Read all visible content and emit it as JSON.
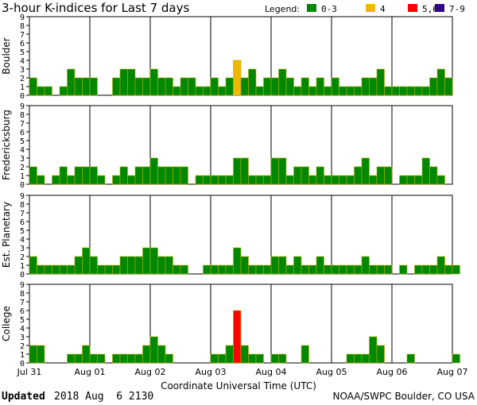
{
  "title": "3-hour K-indices for Last 7 days",
  "legend": {
    "label": "Legend:",
    "items": [
      {
        "label": "0-3",
        "color": "#008800"
      },
      {
        "label": "4",
        "color": "#f0b800"
      },
      {
        "label": "5,6",
        "color": "#ff0000"
      },
      {
        "label": "7-9",
        "color": "#330088"
      }
    ]
  },
  "xaxis_title": "Coordinate Universal Time (UTC)",
  "date_labels": [
    "Jul 31",
    "Aug 01",
    "Aug 02",
    "Aug 03",
    "Aug 04",
    "Aug 05",
    "Aug 06",
    "Aug 07"
  ],
  "footer": {
    "updated_label": "Updated",
    "updated_value": "2018 Aug  6 2130",
    "source": "NOAA/SWPC Boulder, CO USA"
  },
  "chart_data": {
    "type": "bar",
    "ylim": [
      0,
      9
    ],
    "yticks": [
      0,
      1,
      2,
      3,
      4,
      5,
      6,
      7,
      8,
      9
    ],
    "slots_per_day": 8,
    "days": 7,
    "thresholds": [
      {
        "max": 3,
        "color": "#008800"
      },
      {
        "max": 4,
        "color": "#f0b800"
      },
      {
        "max": 6,
        "color": "#ff0000"
      },
      {
        "max": 9,
        "color": "#330088"
      }
    ],
    "panels": [
      {
        "name": "Boulder",
        "values": [
          2,
          1,
          1,
          0,
          1,
          3,
          2,
          2,
          2,
          0,
          0,
          2,
          3,
          3,
          2,
          2,
          3,
          2,
          2,
          1,
          2,
          2,
          1,
          1,
          2,
          1,
          2,
          4,
          2,
          3,
          1,
          2,
          2,
          3,
          2,
          1,
          2,
          1,
          2,
          1,
          2,
          1,
          1,
          1,
          2,
          2,
          3,
          1,
          1,
          1,
          1,
          1,
          1,
          2,
          3,
          2,
          0
        ]
      },
      {
        "name": "Fredericksburg",
        "values": [
          2,
          1,
          0,
          1,
          2,
          1,
          2,
          2,
          2,
          1,
          0,
          1,
          2,
          1,
          2,
          2,
          3,
          2,
          2,
          2,
          2,
          0,
          1,
          1,
          1,
          1,
          1,
          3,
          3,
          1,
          1,
          1,
          3,
          3,
          1,
          2,
          2,
          1,
          2,
          1,
          1,
          1,
          1,
          2,
          3,
          1,
          2,
          2,
          0,
          1,
          1,
          1,
          3,
          2,
          1,
          0
        ]
      },
      {
        "name": "Est. Planetary",
        "values": [
          2,
          1,
          1,
          1,
          1,
          1,
          2,
          3,
          2,
          1,
          1,
          1,
          2,
          2,
          2,
          3,
          3,
          2,
          2,
          1,
          1,
          0,
          0,
          1,
          1,
          1,
          1,
          3,
          2,
          1,
          1,
          1,
          2,
          2,
          1,
          2,
          1,
          1,
          2,
          1,
          1,
          1,
          1,
          1,
          2,
          1,
          1,
          1,
          0,
          1,
          0,
          1,
          1,
          1,
          2,
          1,
          1
        ]
      },
      {
        "name": "College",
        "values": [
          2,
          2,
          0,
          0,
          0,
          1,
          1,
          2,
          1,
          1,
          0,
          1,
          1,
          1,
          1,
          2,
          3,
          2,
          1,
          0,
          0,
          0,
          0,
          0,
          1,
          1,
          2,
          6,
          2,
          1,
          1,
          0,
          1,
          1,
          0,
          0,
          2,
          0,
          0,
          0,
          0,
          0,
          1,
          1,
          1,
          3,
          2,
          0,
          0,
          0,
          1,
          0,
          0,
          0,
          0,
          0,
          1,
          0
        ]
      }
    ]
  }
}
